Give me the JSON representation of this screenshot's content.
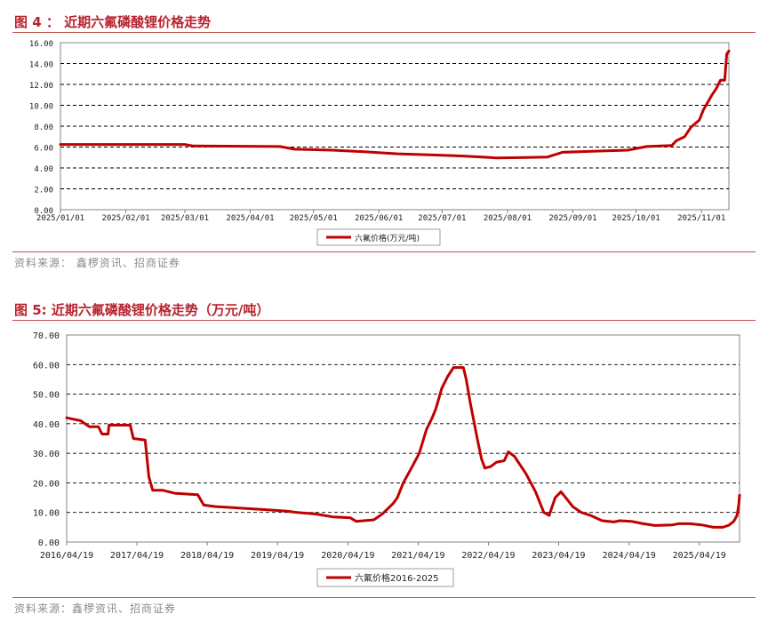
{
  "figures": [
    {
      "title": "图 4 ： 近期六氟磷酸锂价格走势",
      "source": "资料来源： 鑫椤资讯、招商证券"
    },
    {
      "title": "图 5: 近期六氟磷酸锂价格走势（万元/吨）",
      "source": "资料来源：鑫椤资讯、招商证券"
    }
  ],
  "colors": {
    "series": "#c00000",
    "rule": "#c0504d",
    "title": "#b8232f"
  },
  "chart_data": [
    {
      "type": "line",
      "y_ticks": [
        "0.00",
        "2.00",
        "4.00",
        "6.00",
        "8.00",
        "10.00",
        "12.00",
        "14.00",
        "16.00"
      ],
      "x_ticks": [
        "2025/01/01",
        "2025/02/01",
        "2025/03/01",
        "2025/04/01",
        "2025/05/01",
        "2025/06/01",
        "2025/07/01",
        "2025/08/01",
        "2025/09/01",
        "2025/10/01",
        "2025/11/01"
      ],
      "ylim": [
        0,
        16
      ],
      "xlim": [
        "2025-01-01",
        "2025-11-14"
      ],
      "grid": "horizontal dashed",
      "legend_position": "bottom-center",
      "series": [
        {
          "name": "六氟价格(万元/吨)",
          "points": [
            [
              "2025-01-01",
              6.25
            ],
            [
              "2025-03-01",
              6.25
            ],
            [
              "2025-03-05",
              6.1
            ],
            [
              "2025-04-15",
              6.05
            ],
            [
              "2025-04-22",
              5.8
            ],
            [
              "2025-05-10",
              5.7
            ],
            [
              "2025-05-25",
              5.55
            ],
            [
              "2025-06-10",
              5.35
            ],
            [
              "2025-06-25",
              5.25
            ],
            [
              "2025-07-10",
              5.15
            ],
            [
              "2025-07-20",
              5.05
            ],
            [
              "2025-07-27",
              4.95
            ],
            [
              "2025-08-10",
              5.0
            ],
            [
              "2025-08-20",
              5.05
            ],
            [
              "2025-08-27",
              5.5
            ],
            [
              "2025-09-10",
              5.6
            ],
            [
              "2025-09-27",
              5.7
            ],
            [
              "2025-10-06",
              6.05
            ],
            [
              "2025-10-18",
              6.15
            ],
            [
              "2025-10-20",
              6.6
            ],
            [
              "2025-10-24",
              7.0
            ],
            [
              "2025-10-27",
              7.9
            ],
            [
              "2025-10-31",
              8.6
            ],
            [
              "2025-11-02",
              9.6
            ],
            [
              "2025-11-04",
              10.3
            ],
            [
              "2025-11-06",
              11.0
            ],
            [
              "2025-11-08",
              11.6
            ],
            [
              "2025-11-10",
              12.4
            ],
            [
              "2025-11-12",
              12.4
            ],
            [
              "2025-11-13",
              14.9
            ],
            [
              "2025-11-14",
              15.2
            ]
          ]
        }
      ]
    },
    {
      "type": "line",
      "y_ticks": [
        "0.00",
        "10.00",
        "20.00",
        "30.00",
        "40.00",
        "50.00",
        "60.00",
        "70.00"
      ],
      "x_ticks": [
        "2016/04/19",
        "2017/04/19",
        "2018/04/19",
        "2019/04/19",
        "2020/04/19",
        "2021/04/19",
        "2022/04/19",
        "2023/04/19",
        "2024/04/19",
        "2025/04/19"
      ],
      "ylim": [
        0,
        70
      ],
      "xlim": [
        "2016-04-19",
        "2025-11-14"
      ],
      "grid": "horizontal dashed",
      "legend_position": "bottom-center",
      "series": [
        {
          "name": "六氟价格2016-2025",
          "points": [
            [
              "2016-04-19",
              42
            ],
            [
              "2016-07-01",
              41
            ],
            [
              "2016-08-15",
              39
            ],
            [
              "2016-10-01",
              39
            ],
            [
              "2016-10-20",
              36.5
            ],
            [
              "2016-11-20",
              36.5
            ],
            [
              "2016-11-25",
              39.5
            ],
            [
              "2017-01-01",
              39.5
            ],
            [
              "2017-03-15",
              39.5
            ],
            [
              "2017-04-01",
              35
            ],
            [
              "2017-06-01",
              34.5
            ],
            [
              "2017-06-20",
              22
            ],
            [
              "2017-07-10",
              17.5
            ],
            [
              "2017-09-01",
              17.5
            ],
            [
              "2017-11-01",
              16.5
            ],
            [
              "2018-03-01",
              16
            ],
            [
              "2018-04-01",
              12.5
            ],
            [
              "2018-06-01",
              12
            ],
            [
              "2018-10-01",
              11.5
            ],
            [
              "2019-02-01",
              11
            ],
            [
              "2019-06-01",
              10.5
            ],
            [
              "2019-08-01",
              10
            ],
            [
              "2019-11-01",
              9.5
            ],
            [
              "2020-02-01",
              8.5
            ],
            [
              "2020-05-01",
              8.2
            ],
            [
              "2020-06-01",
              7
            ],
            [
              "2020-09-01",
              7.5
            ],
            [
              "2020-10-15",
              9.5
            ],
            [
              "2020-12-10",
              13
            ],
            [
              "2021-01-01",
              15
            ],
            [
              "2021-02-01",
              20
            ],
            [
              "2021-03-15",
              25
            ],
            [
              "2021-04-25",
              30
            ],
            [
              "2021-06-01",
              38
            ],
            [
              "2021-07-01",
              42
            ],
            [
              "2021-07-20",
              45
            ],
            [
              "2021-08-20",
              52
            ],
            [
              "2021-09-20",
              56
            ],
            [
              "2021-10-20",
              59
            ],
            [
              "2021-12-10",
              59
            ],
            [
              "2021-12-25",
              55
            ],
            [
              "2022-01-15",
              47
            ],
            [
              "2022-02-20",
              35
            ],
            [
              "2022-03-15",
              28
            ],
            [
              "2022-04-01",
              25
            ],
            [
              "2022-05-01",
              25.5
            ],
            [
              "2022-06-01",
              27
            ],
            [
              "2022-07-10",
              27.5
            ],
            [
              "2022-08-01",
              30.5
            ],
            [
              "2022-09-01",
              29
            ],
            [
              "2022-11-01",
              23
            ],
            [
              "2022-12-20",
              17
            ],
            [
              "2023-02-01",
              10
            ],
            [
              "2023-03-01",
              9
            ],
            [
              "2023-04-01",
              15
            ],
            [
              "2023-05-01",
              17
            ],
            [
              "2023-06-01",
              14.5
            ],
            [
              "2023-07-01",
              12
            ],
            [
              "2023-08-15",
              10
            ],
            [
              "2023-10-01",
              9
            ],
            [
              "2023-12-01",
              7.2
            ],
            [
              "2024-02-01",
              6.8
            ],
            [
              "2024-03-01",
              7.2
            ],
            [
              "2024-05-01",
              7
            ],
            [
              "2024-07-01",
              6.2
            ],
            [
              "2024-09-01",
              5.6
            ],
            [
              "2024-12-01",
              5.8
            ],
            [
              "2025-01-01",
              6.2
            ],
            [
              "2025-03-01",
              6.2
            ],
            [
              "2025-05-01",
              5.8
            ],
            [
              "2025-07-01",
              5
            ],
            [
              "2025-08-20",
              5
            ],
            [
              "2025-09-20",
              5.7
            ],
            [
              "2025-10-15",
              7
            ],
            [
              "2025-11-01",
              9
            ],
            [
              "2025-11-10",
              12.5
            ],
            [
              "2025-11-14",
              15.8
            ]
          ]
        }
      ]
    }
  ]
}
